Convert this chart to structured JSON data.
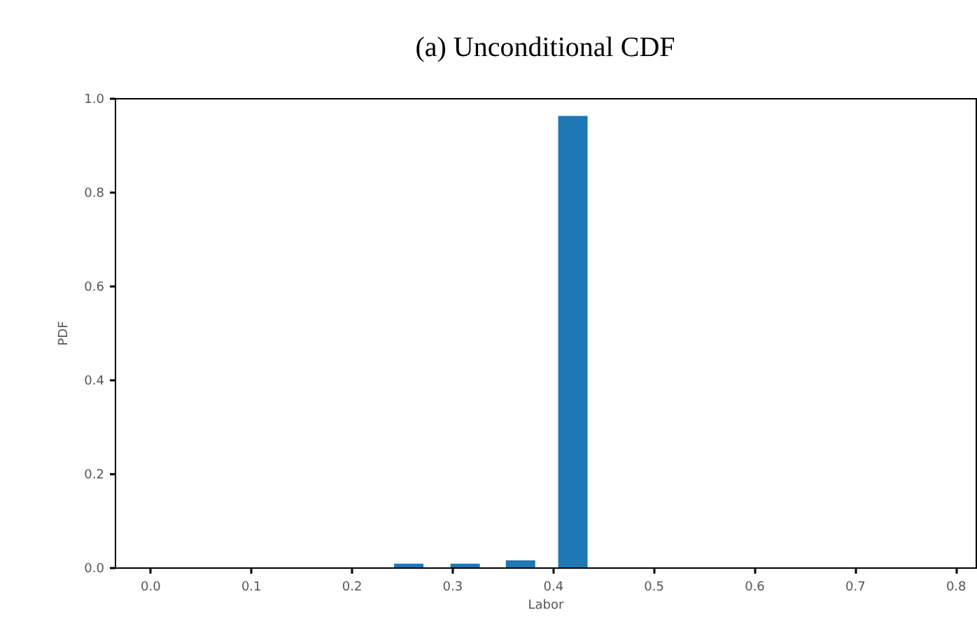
{
  "chart_data": {
    "type": "bar",
    "title": "(a) Unconditional CDF",
    "xlabel": "Labor",
    "ylabel": "PDF",
    "x": [
      0.257,
      0.313,
      0.368,
      0.42
    ],
    "values": [
      0.008,
      0.008,
      0.015,
      0.962
    ],
    "color": "#1f77b4",
    "xlim": [
      -0.035,
      0.82
    ],
    "xticks": [
      {
        "value": 0,
        "label": "0.0"
      },
      0.1,
      0.2,
      0.3,
      0.4,
      0.5,
      0.6,
      0.7,
      0.8
    ],
    "ylim": [
      0,
      1
    ],
    "yticks": [
      {
        "value": 0,
        "label": "0.0"
      },
      0.2,
      0.4,
      0.6,
      0.8,
      {
        "value": 1,
        "label": "1.0"
      }
    ],
    "grid": false
  }
}
